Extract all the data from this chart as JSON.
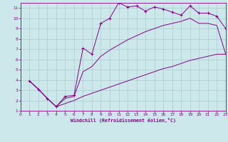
{
  "xlabel": "Windchill (Refroidissement éolien,°C)",
  "xlim": [
    0,
    23
  ],
  "ylim": [
    1,
    11.5
  ],
  "xticks": [
    0,
    1,
    2,
    3,
    4,
    5,
    6,
    7,
    8,
    9,
    10,
    11,
    12,
    13,
    14,
    15,
    16,
    17,
    18,
    19,
    20,
    21,
    22,
    23
  ],
  "yticks": [
    1,
    2,
    3,
    4,
    5,
    6,
    7,
    8,
    9,
    10,
    11
  ],
  "bg_color": "#cce8ea",
  "grid_color": "#aacccc",
  "line_color": "#880088",
  "c1x": [
    1,
    2,
    3,
    4,
    5,
    6,
    7,
    8,
    9,
    10,
    11,
    12,
    13,
    14,
    15,
    16,
    17,
    18,
    19,
    20,
    21,
    22,
    23
  ],
  "c1y": [
    3.9,
    3.1,
    2.2,
    1.4,
    2.4,
    2.5,
    7.1,
    6.5,
    9.5,
    10.0,
    11.5,
    11.1,
    11.2,
    10.7,
    11.1,
    10.9,
    10.6,
    10.3,
    11.2,
    10.5,
    10.5,
    10.2,
    9.0
  ],
  "c2x": [
    1,
    2,
    3,
    4,
    5,
    6,
    7,
    8,
    9,
    10,
    11,
    12,
    13,
    14,
    15,
    16,
    17,
    18,
    19,
    20,
    21,
    22,
    23
  ],
  "c2y": [
    3.9,
    3.1,
    2.2,
    1.4,
    1.7,
    2.0,
    2.4,
    2.7,
    3.0,
    3.3,
    3.6,
    3.9,
    4.2,
    4.5,
    4.8,
    5.1,
    5.3,
    5.6,
    5.9,
    6.1,
    6.3,
    6.5,
    6.5
  ],
  "c3x": [
    1,
    2,
    3,
    4,
    5,
    6,
    7,
    8,
    9,
    10,
    11,
    12,
    13,
    14,
    15,
    16,
    17,
    18,
    19,
    20,
    21,
    22,
    23
  ],
  "c3y": [
    3.9,
    3.1,
    2.2,
    1.4,
    2.2,
    2.4,
    4.8,
    5.3,
    6.3,
    6.9,
    7.4,
    7.9,
    8.3,
    8.7,
    9.0,
    9.3,
    9.5,
    9.7,
    10.0,
    9.5,
    9.5,
    9.3,
    6.5
  ]
}
